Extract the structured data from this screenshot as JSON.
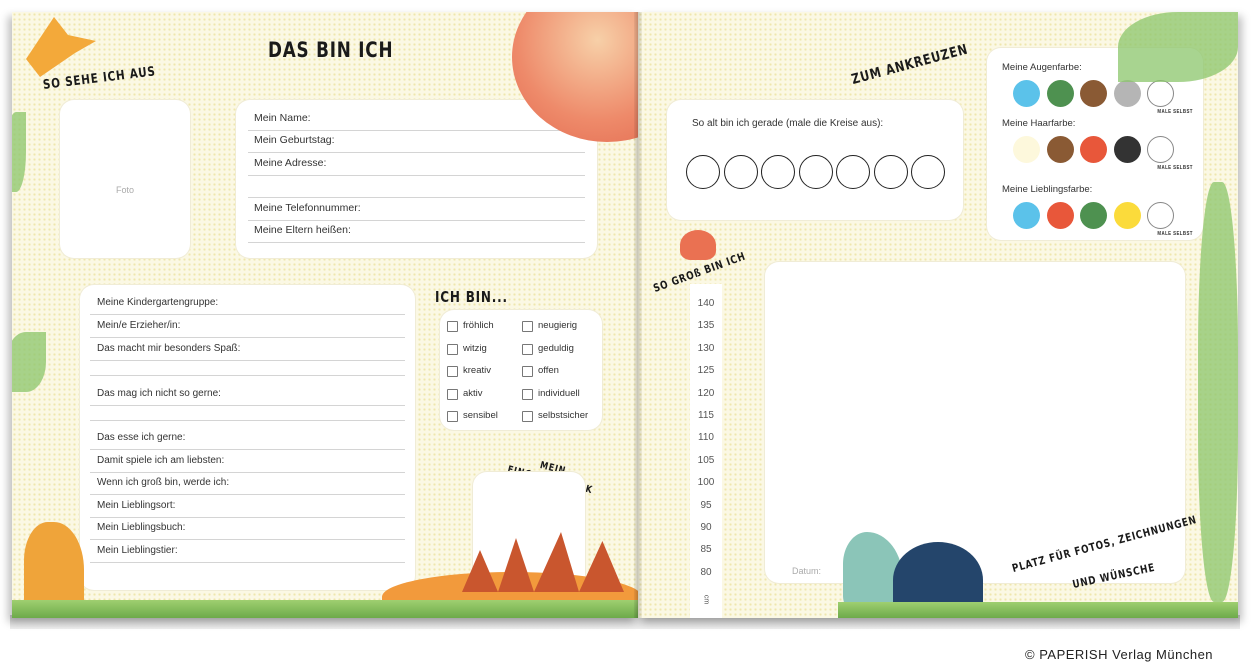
{
  "left_page": {
    "title": "DAS BIN ICH",
    "look_heading": "SO SEHE ICH AUS",
    "photo_placeholder": "Foto",
    "personal_fields": [
      "Mein Name:",
      "Mein Geburtstag:",
      "Meine Adresse:",
      "Meine Telefonnummer:",
      "Meine Eltern heißen:"
    ],
    "kindergarten_fields": [
      "Meine Kindergartengruppe:",
      "Mein/e Erzieher/in:",
      "Das macht mir besonders Spaß:",
      "Das mag ich nicht so gerne:",
      "Das esse ich gerne:",
      "Damit spiele ich am liebsten:",
      "Wenn ich groß bin, werde ich:",
      "Mein Lieblingsort:",
      "Mein Lieblingsbuch:",
      "Mein Lieblingstier:"
    ],
    "traits_heading": "ICH BIN...",
    "traits": [
      [
        "fröhlich",
        "neugierig"
      ],
      [
        "witzig",
        "geduldig"
      ],
      [
        "kreativ",
        "offen"
      ],
      [
        "aktiv",
        "individuell"
      ],
      [
        "sensibel",
        "selbstsicher"
      ]
    ],
    "fingerprint_heading_1": "MEIN",
    "fingerprint_heading_2": "FINGERABDRUCK"
  },
  "right_page": {
    "tick_heading": "ZUM ANKREUZEN",
    "age_prompt": "So alt bin ich gerade (male die Kreise aus):",
    "age_circles": 7,
    "colors": [
      {
        "label": "Meine Augenfarbe:",
        "swatches": [
          "#5bc2ea",
          "#4e9150",
          "#8a5a34",
          "#b5b5b5",
          "#ffffff"
        ],
        "self_label": "MALE SELBST"
      },
      {
        "label": "Meine Haarfarbe:",
        "swatches": [
          "#fdf8dc",
          "#8a5a34",
          "#e8573a",
          "#333333",
          "#ffffff"
        ],
        "self_label": "MALE SELBST"
      },
      {
        "label": "Meine Lieblingsfarbe:",
        "swatches": [
          "#5bc2ea",
          "#e8573a",
          "#4e9150",
          "#fbdb3b",
          "#ffffff"
        ],
        "self_label": "MALE SELBST"
      }
    ],
    "height_heading": "SO GROß BIN ICH",
    "height_ticks": [
      "140",
      "135",
      "130",
      "125",
      "120",
      "115",
      "110",
      "105",
      "100",
      "95",
      "90",
      "85",
      "80"
    ],
    "height_unit": "cm",
    "date_label": "Datum:",
    "space_heading_1": "PLATZ FÜR FOTOS, ZEICHNUNGEN",
    "space_heading_2": "UND WÜNSCHE"
  },
  "copyright": "© PAPERISH Verlag München"
}
